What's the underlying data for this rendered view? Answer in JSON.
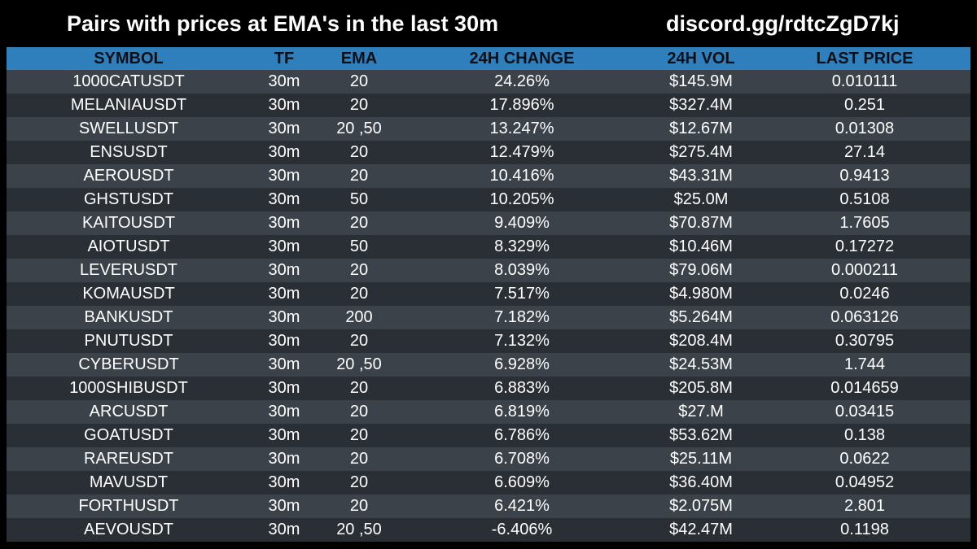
{
  "header": {
    "title": "Pairs with prices at EMA's in the last 30m",
    "link": "discord.gg/rdtcZgD7kj"
  },
  "colors": {
    "background": "#000000",
    "header_row": "#2f7fbd",
    "row_dark": "#2a2f35",
    "row_light": "#3c424a",
    "text": "#ffffff"
  },
  "table": {
    "columns": [
      "SYMBOL",
      "TF",
      "EMA",
      "24H CHANGE",
      "24H VOL",
      "LAST PRICE"
    ],
    "rows": [
      [
        "1000CATUSDT",
        "30m",
        "20",
        "24.26%",
        "$145.9M",
        "0.010111"
      ],
      [
        "MELANIAUSDT",
        "30m",
        "20",
        "17.896%",
        "$327.4M",
        "0.251"
      ],
      [
        "SWELLUSDT",
        "30m",
        "20 ,50",
        "13.247%",
        "$12.67M",
        "0.01308"
      ],
      [
        "ENSUSDT",
        "30m",
        "20",
        "12.479%",
        "$275.4M",
        "27.14"
      ],
      [
        "AEROUSDT",
        "30m",
        "20",
        "10.416%",
        "$43.31M",
        "0.9413"
      ],
      [
        "GHSTUSDT",
        "30m",
        "50",
        "10.205%",
        "$25.0M",
        "0.5108"
      ],
      [
        "KAITOUSDT",
        "30m",
        "20",
        "9.409%",
        "$70.87M",
        "1.7605"
      ],
      [
        "AIOTUSDT",
        "30m",
        "50",
        "8.329%",
        "$10.46M",
        "0.17272"
      ],
      [
        "LEVERUSDT",
        "30m",
        "20",
        "8.039%",
        "$79.06M",
        "0.000211"
      ],
      [
        "KOMAUSDT",
        "30m",
        "20",
        "7.517%",
        "$4.980M",
        "0.0246"
      ],
      [
        "BANKUSDT",
        "30m",
        "200",
        "7.182%",
        "$5.264M",
        "0.063126"
      ],
      [
        "PNUTUSDT",
        "30m",
        "20",
        "7.132%",
        "$208.4M",
        "0.30795"
      ],
      [
        "CYBERUSDT",
        "30m",
        "20 ,50",
        "6.928%",
        "$24.53M",
        "1.744"
      ],
      [
        "1000SHIBUSDT",
        "30m",
        "20",
        "6.883%",
        "$205.8M",
        "0.014659"
      ],
      [
        "ARCUSDT",
        "30m",
        "20",
        "6.819%",
        "$27.M",
        "0.03415"
      ],
      [
        "GOATUSDT",
        "30m",
        "20",
        "6.786%",
        "$53.62M",
        "0.138"
      ],
      [
        "RAREUSDT",
        "30m",
        "20",
        "6.708%",
        "$25.11M",
        "0.0622"
      ],
      [
        "MAVUSDT",
        "30m",
        "20",
        "6.609%",
        "$36.40M",
        "0.04952"
      ],
      [
        "FORTHUSDT",
        "30m",
        "20",
        "6.421%",
        "$2.075M",
        "2.801"
      ],
      [
        "AEVOUSDT",
        "30m",
        "20 ,50",
        "-6.406%",
        "$42.47M",
        "0.1198"
      ]
    ]
  }
}
